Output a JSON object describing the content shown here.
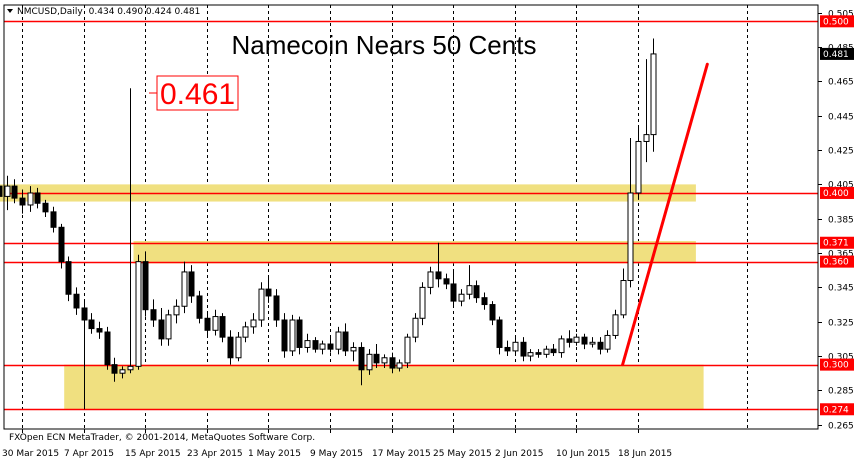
{
  "header": {
    "symbol": "NMCUSD,Daily",
    "ohlc": "0.434 0.490 0.424 0.481"
  },
  "copyright": "FXOpen ECN MetaTrader, © 2001-2014, MetaQuotes Software Corp.",
  "colors": {
    "background": "#ffffff",
    "level_line": "#ff0000",
    "zone_fill": "#f0e080",
    "trend_line": "#ff0000",
    "candle_outline": "#000000",
    "price_label_bg": "#ff0000"
  },
  "chart_data": {
    "type": "candlestick",
    "title": "Namecoin Nears 50 Cents",
    "callout": "0.461",
    "ylim": [
      0.2625,
      0.5095
    ],
    "y_ticks": [
      "0.505",
      "0.485",
      "0.465",
      "0.445",
      "0.425",
      "0.405",
      "0.385",
      "0.365",
      "0.345",
      "0.325",
      "0.305",
      "0.285",
      "0.265"
    ],
    "x_ticks": [
      "30 Mar 2015",
      "7 Apr 2015",
      "15 Apr 2015",
      "23 Apr 2015",
      "1 May 2015",
      "9 May 2015",
      "17 May 2015",
      "25 May 2015",
      "2 Jun 2015",
      "10 Jun 2015",
      "18 Jun 2015"
    ],
    "current_price": "0.481",
    "levels": [
      {
        "value": 0.5,
        "label": "0.500"
      },
      {
        "value": 0.4,
        "label": "0.400"
      },
      {
        "value": 0.371,
        "label": "0.371"
      },
      {
        "value": 0.36,
        "label": "0.360"
      },
      {
        "value": 0.3,
        "label": "0.300"
      },
      {
        "value": 0.274,
        "label": "0.274"
      }
    ],
    "zones": [
      {
        "from": "27 Mar 2015",
        "to": "25 Jun 2015",
        "low": 0.395,
        "high": 0.405
      },
      {
        "from": "14 Apr 2015",
        "to": "25 Jun 2015",
        "low": 0.359,
        "high": 0.372
      },
      {
        "from": "5 Apr 2015",
        "to": "26 Jun 2015",
        "low": 0.274,
        "high": 0.3
      }
    ],
    "trend_line": {
      "start": {
        "date": "16 Jun 2015",
        "value": 0.3
      },
      "end": {
        "date": "27 Jun 2015",
        "value": 0.475
      }
    },
    "candles": [
      {
        "date": "27 Mar 2015",
        "o": 0.404,
        "h": 0.412,
        "l": 0.392,
        "c": 0.398
      },
      {
        "date": "28 Mar 2015",
        "o": 0.398,
        "h": 0.41,
        "l": 0.39,
        "c": 0.404
      },
      {
        "date": "29 Mar 2015",
        "o": 0.404,
        "h": 0.408,
        "l": 0.394,
        "c": 0.397
      },
      {
        "date": "30 Mar 2015",
        "o": 0.397,
        "h": 0.402,
        "l": 0.388,
        "c": 0.393
      },
      {
        "date": "31 Mar 2015",
        "o": 0.393,
        "h": 0.404,
        "l": 0.389,
        "c": 0.4
      },
      {
        "date": "1 Apr 2015",
        "o": 0.4,
        "h": 0.403,
        "l": 0.391,
        "c": 0.394
      },
      {
        "date": "2 Apr 2015",
        "o": 0.394,
        "h": 0.396,
        "l": 0.386,
        "c": 0.389
      },
      {
        "date": "3 Apr 2015",
        "o": 0.389,
        "h": 0.392,
        "l": 0.377,
        "c": 0.38
      },
      {
        "date": "4 Apr 2015",
        "o": 0.38,
        "h": 0.382,
        "l": 0.356,
        "c": 0.36
      },
      {
        "date": "5 Apr 2015",
        "o": 0.36,
        "h": 0.363,
        "l": 0.337,
        "c": 0.341
      },
      {
        "date": "6 Apr 2015",
        "o": 0.341,
        "h": 0.345,
        "l": 0.329,
        "c": 0.333
      },
      {
        "date": "7 Apr 2015",
        "o": 0.333,
        "h": 0.337,
        "l": 0.274,
        "c": 0.326
      },
      {
        "date": "8 Apr 2015",
        "o": 0.326,
        "h": 0.33,
        "l": 0.318,
        "c": 0.321
      },
      {
        "date": "9 Apr 2015",
        "o": 0.321,
        "h": 0.325,
        "l": 0.315,
        "c": 0.319
      },
      {
        "date": "10 Apr 2015",
        "o": 0.319,
        "h": 0.322,
        "l": 0.297,
        "c": 0.3
      },
      {
        "date": "11 Apr 2015",
        "o": 0.3,
        "h": 0.304,
        "l": 0.29,
        "c": 0.295
      },
      {
        "date": "12 Apr 2015",
        "o": 0.295,
        "h": 0.299,
        "l": 0.292,
        "c": 0.297
      },
      {
        "date": "13 Apr 2015",
        "o": 0.297,
        "h": 0.461,
        "l": 0.295,
        "c": 0.299
      },
      {
        "date": "14 Apr 2015",
        "o": 0.299,
        "h": 0.364,
        "l": 0.297,
        "c": 0.36
      },
      {
        "date": "15 Apr 2015",
        "o": 0.36,
        "h": 0.366,
        "l": 0.328,
        "c": 0.332
      },
      {
        "date": "16 Apr 2015",
        "o": 0.332,
        "h": 0.338,
        "l": 0.322,
        "c": 0.326
      },
      {
        "date": "17 Apr 2015",
        "o": 0.326,
        "h": 0.333,
        "l": 0.311,
        "c": 0.315
      },
      {
        "date": "18 Apr 2015",
        "o": 0.315,
        "h": 0.332,
        "l": 0.311,
        "c": 0.329
      },
      {
        "date": "19 Apr 2015",
        "o": 0.329,
        "h": 0.338,
        "l": 0.324,
        "c": 0.334
      },
      {
        "date": "20 Apr 2015",
        "o": 0.334,
        "h": 0.36,
        "l": 0.33,
        "c": 0.354
      },
      {
        "date": "21 Apr 2015",
        "o": 0.354,
        "h": 0.358,
        "l": 0.336,
        "c": 0.34
      },
      {
        "date": "22 Apr 2015",
        "o": 0.34,
        "h": 0.343,
        "l": 0.324,
        "c": 0.327
      },
      {
        "date": "23 Apr 2015",
        "o": 0.327,
        "h": 0.33,
        "l": 0.317,
        "c": 0.32
      },
      {
        "date": "24 Apr 2015",
        "o": 0.32,
        "h": 0.332,
        "l": 0.317,
        "c": 0.328
      },
      {
        "date": "25 Apr 2015",
        "o": 0.328,
        "h": 0.33,
        "l": 0.313,
        "c": 0.316
      },
      {
        "date": "26 Apr 2015",
        "o": 0.316,
        "h": 0.32,
        "l": 0.3,
        "c": 0.304
      },
      {
        "date": "27 Apr 2015",
        "o": 0.304,
        "h": 0.319,
        "l": 0.302,
        "c": 0.316
      },
      {
        "date": "28 Apr 2015",
        "o": 0.316,
        "h": 0.325,
        "l": 0.313,
        "c": 0.322
      },
      {
        "date": "29 Apr 2015",
        "o": 0.322,
        "h": 0.33,
        "l": 0.318,
        "c": 0.326
      },
      {
        "date": "30 Apr 2015",
        "o": 0.326,
        "h": 0.348,
        "l": 0.322,
        "c": 0.344
      },
      {
        "date": "1 May 2015",
        "o": 0.344,
        "h": 0.352,
        "l": 0.336,
        "c": 0.34
      },
      {
        "date": "2 May 2015",
        "o": 0.34,
        "h": 0.344,
        "l": 0.322,
        "c": 0.326
      },
      {
        "date": "3 May 2015",
        "o": 0.326,
        "h": 0.33,
        "l": 0.304,
        "c": 0.308
      },
      {
        "date": "4 May 2015",
        "o": 0.308,
        "h": 0.329,
        "l": 0.305,
        "c": 0.326
      },
      {
        "date": "5 May 2015",
        "o": 0.326,
        "h": 0.328,
        "l": 0.306,
        "c": 0.31
      },
      {
        "date": "6 May 2015",
        "o": 0.31,
        "h": 0.318,
        "l": 0.307,
        "c": 0.314
      },
      {
        "date": "7 May 2015",
        "o": 0.314,
        "h": 0.316,
        "l": 0.307,
        "c": 0.309
      },
      {
        "date": "8 May 2015",
        "o": 0.309,
        "h": 0.314,
        "l": 0.306,
        "c": 0.312
      },
      {
        "date": "9 May 2015",
        "o": 0.312,
        "h": 0.316,
        "l": 0.307,
        "c": 0.309
      },
      {
        "date": "10 May 2015",
        "o": 0.309,
        "h": 0.322,
        "l": 0.306,
        "c": 0.319
      },
      {
        "date": "11 May 2015",
        "o": 0.319,
        "h": 0.324,
        "l": 0.305,
        "c": 0.308
      },
      {
        "date": "12 May 2015",
        "o": 0.308,
        "h": 0.313,
        "l": 0.302,
        "c": 0.31
      },
      {
        "date": "13 May 2015",
        "o": 0.31,
        "h": 0.313,
        "l": 0.288,
        "c": 0.297
      },
      {
        "date": "14 May 2015",
        "o": 0.297,
        "h": 0.309,
        "l": 0.294,
        "c": 0.306
      },
      {
        "date": "15 May 2015",
        "o": 0.306,
        "h": 0.312,
        "l": 0.298,
        "c": 0.301
      },
      {
        "date": "16 May 2015",
        "o": 0.301,
        "h": 0.306,
        "l": 0.298,
        "c": 0.304
      },
      {
        "date": "17 May 2015",
        "o": 0.304,
        "h": 0.307,
        "l": 0.295,
        "c": 0.298
      },
      {
        "date": "18 May 2015",
        "o": 0.298,
        "h": 0.303,
        "l": 0.296,
        "c": 0.301
      },
      {
        "date": "19 May 2015",
        "o": 0.301,
        "h": 0.318,
        "l": 0.298,
        "c": 0.316
      },
      {
        "date": "20 May 2015",
        "o": 0.316,
        "h": 0.33,
        "l": 0.313,
        "c": 0.327
      },
      {
        "date": "21 May 2015",
        "o": 0.327,
        "h": 0.348,
        "l": 0.323,
        "c": 0.345
      },
      {
        "date": "22 May 2015",
        "o": 0.345,
        "h": 0.357,
        "l": 0.341,
        "c": 0.354
      },
      {
        "date": "23 May 2015",
        "o": 0.354,
        "h": 0.371,
        "l": 0.345,
        "c": 0.35
      },
      {
        "date": "24 May 2015",
        "o": 0.35,
        "h": 0.353,
        "l": 0.344,
        "c": 0.347
      },
      {
        "date": "25 May 2015",
        "o": 0.347,
        "h": 0.355,
        "l": 0.333,
        "c": 0.337
      },
      {
        "date": "26 May 2015",
        "o": 0.337,
        "h": 0.344,
        "l": 0.334,
        "c": 0.341
      },
      {
        "date": "27 May 2015",
        "o": 0.341,
        "h": 0.358,
        "l": 0.338,
        "c": 0.346
      },
      {
        "date": "28 May 2015",
        "o": 0.346,
        "h": 0.349,
        "l": 0.336,
        "c": 0.339
      },
      {
        "date": "29 May 2015",
        "o": 0.339,
        "h": 0.342,
        "l": 0.332,
        "c": 0.335
      },
      {
        "date": "30 May 2015",
        "o": 0.335,
        "h": 0.337,
        "l": 0.323,
        "c": 0.326
      },
      {
        "date": "31 May 2015",
        "o": 0.326,
        "h": 0.328,
        "l": 0.306,
        "c": 0.31
      },
      {
        "date": "1 Jun 2015",
        "o": 0.31,
        "h": 0.314,
        "l": 0.305,
        "c": 0.308
      },
      {
        "date": "2 Jun 2015",
        "o": 0.308,
        "h": 0.316,
        "l": 0.305,
        "c": 0.313
      },
      {
        "date": "3 Jun 2015",
        "o": 0.313,
        "h": 0.316,
        "l": 0.302,
        "c": 0.305
      },
      {
        "date": "4 Jun 2015",
        "o": 0.305,
        "h": 0.309,
        "l": 0.302,
        "c": 0.307
      },
      {
        "date": "5 Jun 2015",
        "o": 0.307,
        "h": 0.309,
        "l": 0.304,
        "c": 0.306
      },
      {
        "date": "6 Jun 2015",
        "o": 0.306,
        "h": 0.311,
        "l": 0.304,
        "c": 0.309
      },
      {
        "date": "7 Jun 2015",
        "o": 0.309,
        "h": 0.312,
        "l": 0.305,
        "c": 0.307
      },
      {
        "date": "8 Jun 2015",
        "o": 0.307,
        "h": 0.317,
        "l": 0.304,
        "c": 0.315
      },
      {
        "date": "9 Jun 2015",
        "o": 0.315,
        "h": 0.32,
        "l": 0.31,
        "c": 0.313
      },
      {
        "date": "10 Jun 2015",
        "o": 0.313,
        "h": 0.318,
        "l": 0.311,
        "c": 0.316
      },
      {
        "date": "11 Jun 2015",
        "o": 0.316,
        "h": 0.318,
        "l": 0.309,
        "c": 0.312
      },
      {
        "date": "12 Jun 2015",
        "o": 0.312,
        "h": 0.316,
        "l": 0.31,
        "c": 0.313
      },
      {
        "date": "13 Jun 2015",
        "o": 0.313,
        "h": 0.316,
        "l": 0.306,
        "c": 0.309
      },
      {
        "date": "14 Jun 2015",
        "o": 0.309,
        "h": 0.32,
        "l": 0.307,
        "c": 0.317
      },
      {
        "date": "15 Jun 2015",
        "o": 0.317,
        "h": 0.332,
        "l": 0.315,
        "c": 0.329
      },
      {
        "date": "16 Jun 2015",
        "o": 0.329,
        "h": 0.356,
        "l": 0.327,
        "c": 0.349
      },
      {
        "date": "17 Jun 2015",
        "o": 0.349,
        "h": 0.432,
        "l": 0.345,
        "c": 0.4
      },
      {
        "date": "18 Jun 2015",
        "o": 0.4,
        "h": 0.438,
        "l": 0.396,
        "c": 0.43
      },
      {
        "date": "19 Jun 2015",
        "o": 0.43,
        "h": 0.478,
        "l": 0.418,
        "c": 0.434
      },
      {
        "date": "20 Jun 2015",
        "o": 0.434,
        "h": 0.49,
        "l": 0.424,
        "c": 0.481
      }
    ]
  }
}
